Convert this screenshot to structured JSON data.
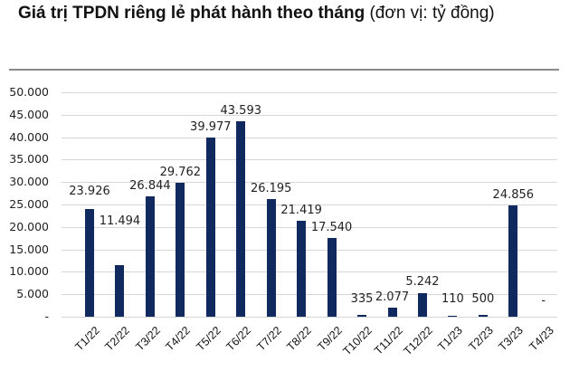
{
  "title": {
    "bold": "Giá trị TPDN riêng lẻ phát hành theo tháng",
    "normal": " (đơn vị: tỷ đồng)"
  },
  "colors": {
    "bar": "#10295e",
    "grid": "#d6d6d6",
    "frame": "#8a8a8a"
  },
  "chart_data": {
    "type": "bar",
    "title": "Giá trị TPDN riêng lẻ phát hành theo tháng (đơn vị: tỷ đồng)",
    "xlabel": "",
    "ylabel": "",
    "ylim": [
      0,
      50000
    ],
    "grid": true,
    "legend": null,
    "yticks": [
      "-",
      "5.000",
      "10.000",
      "15.000",
      "20.000",
      "25.000",
      "30.000",
      "35.000",
      "40.000",
      "45.000",
      "50.000"
    ],
    "categories": [
      "T1/22",
      "T2/22",
      "T3/22",
      "T4/22",
      "T5/22",
      "T6/22",
      "T7/22",
      "T8/22",
      "T9/22",
      "T10/22",
      "T11/22",
      "T12/22",
      "T1/23",
      "T2/23",
      "T3/23",
      "T4/23"
    ],
    "values": [
      23926,
      11494,
      26844,
      29762,
      39977,
      43593,
      26195,
      21419,
      17540,
      335,
      2077,
      5242,
      110,
      500,
      24856,
      0
    ],
    "data_labels": [
      "23.926",
      "11.494",
      "26.844",
      "29.762",
      "39.977",
      "43.593",
      "26.195",
      "21.419",
      "17.540",
      "335",
      "2.077",
      "5.242",
      "110",
      "500",
      "24.856",
      "-"
    ]
  }
}
